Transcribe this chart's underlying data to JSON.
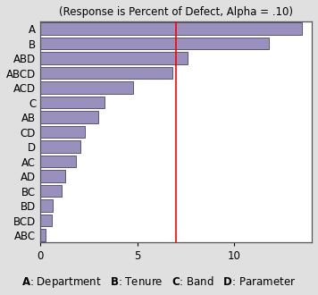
{
  "title": "(Response is Percent of Defect, Alpha = .10)",
  "categories": [
    "A",
    "B",
    "ABD",
    "ABCD",
    "ACD",
    "C",
    "AB",
    "CD",
    "D",
    "AC",
    "AD",
    "BC",
    "BD",
    "BCD",
    "ABC"
  ],
  "values": [
    13.5,
    11.8,
    7.6,
    6.8,
    4.8,
    3.3,
    3.0,
    2.3,
    2.05,
    1.85,
    1.3,
    1.1,
    0.65,
    0.6,
    0.28
  ],
  "bar_color": "#9990BE",
  "bar_edgecolor": "#444466",
  "reference_line_x": 7.0,
  "reference_line_color": "red",
  "xlim": [
    0,
    14
  ],
  "xticks": [
    0,
    5,
    10
  ],
  "legend_items": [
    {
      "label": "A",
      "desc": ": Department"
    },
    {
      "label": "B",
      "desc": ": Tenure"
    },
    {
      "label": "C",
      "desc": ": Band"
    },
    {
      "label": "D",
      "desc": ": Parameter"
    }
  ],
  "outer_bg_color": "#e0e0e0",
  "inner_frame_bg": "#ffffff",
  "plot_bg_color": "#ffffff",
  "title_fontsize": 8.5,
  "tick_fontsize": 8.5,
  "legend_fontsize": 8.5,
  "bar_height": 0.82
}
